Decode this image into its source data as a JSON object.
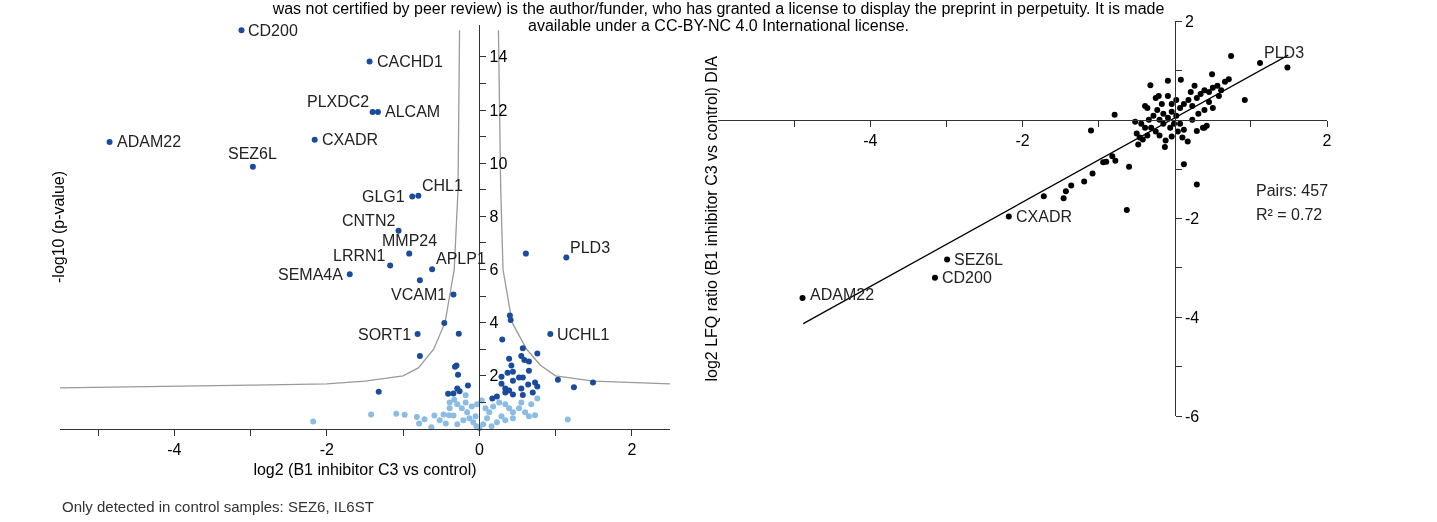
{
  "chart_data": [
    {
      "type": "scatter",
      "xlabel": "log2 (B1 inhibitor C3 vs control)",
      "ylabel": "-log10 (p-value)",
      "marker": "circle",
      "line_style": "solid",
      "grid": false,
      "xlim": [
        -5.5,
        2.5
      ],
      "xticks": [
        {
          "value": -5,
          "label": null
        },
        -4,
        {
          "value": -3,
          "label": null
        },
        -2,
        {
          "value": -1,
          "label": null
        },
        0,
        {
          "value": 1,
          "label": null
        },
        2
      ],
      "ylim": [
        0,
        15.2
      ],
      "yticks": [
        {
          "value": 1,
          "label": null
        },
        2,
        {
          "value": 3,
          "label": null
        },
        4,
        {
          "value": 5,
          "label": null
        },
        6,
        {
          "value": 7,
          "label": null
        },
        8,
        {
          "value": 9,
          "label": null
        },
        10,
        {
          "value": 11,
          "label": null
        },
        12,
        {
          "value": 13,
          "label": null
        },
        14
      ],
      "annotations": [
        "was not certified by peer review) is the author/funder, who has granted a license to display the preprint in perpetuity. It is made",
        "available under a CC-BY-NC 4.0 International license.",
        "Only detected in control samples: SEZ6, IL6ST",
        {
          "text": "CD200",
          "x": -3.12,
          "y": 15.0
        },
        {
          "text": "CACHD1",
          "x": -1.44,
          "y": 13.83
        },
        {
          "text": "PLXDC2",
          "x": -1.4,
          "y": 11.93
        },
        {
          "text": "ALCAM",
          "x": -1.33,
          "y": 11.93
        },
        {
          "text": "ADAM22",
          "x": -4.85,
          "y": 10.8
        },
        {
          "text": "CXADR",
          "x": -2.16,
          "y": 10.88
        },
        {
          "text": "SEZ6L",
          "x": -2.97,
          "y": 9.87
        },
        {
          "text": "GLG1",
          "x": -0.88,
          "y": 8.75
        },
        {
          "text": "CHL1",
          "x": -0.8,
          "y": 8.78
        },
        {
          "text": "CNTN2",
          "x": -1.06,
          "y": 7.46
        },
        {
          "text": "MMP24",
          "x": -0.92,
          "y": 6.6
        },
        {
          "text": "LRRN1",
          "x": -1.17,
          "y": 6.15
        },
        {
          "text": "SEMA4A",
          "x": -1.7,
          "y": 5.82
        },
        {
          "text": "APLP1",
          "x": -0.62,
          "y": 6.01
        },
        {
          "text": "VCAM1",
          "x": -0.34,
          "y": 5.06
        },
        {
          "text": "SORT1",
          "x": -0.81,
          "y": 3.57
        },
        {
          "text": "PLD3",
          "x": 1.14,
          "y": 6.45
        },
        {
          "text": "UCHL1",
          "x": 0.93,
          "y": 3.57
        }
      ],
      "series": [
        {
          "type": "line",
          "marker": "none",
          "color": "#9a9a9a",
          "x": [
            -5.5,
            -3,
            -2,
            -1.5,
            -1,
            -0.8,
            -0.6,
            -0.45,
            -0.33,
            -0.28,
            -0.26,
            0,
            0.25,
            0.28,
            0.31,
            0.43,
            0.62,
            0.8,
            1.0,
            1.5,
            2.5
          ],
          "values": [
            1.55,
            1.65,
            1.7,
            1.8,
            2.0,
            2.3,
            3.0,
            4.0,
            6.0,
            9.0,
            15.0,
            null,
            15.0,
            9.0,
            6.0,
            4.0,
            3.0,
            2.4,
            2.0,
            1.8,
            1.7
          ]
        },
        {
          "type": "scatter",
          "color": "#8cbbe3",
          "x": [
            -2.18,
            -1.42,
            -1.09,
            -0.98,
            -0.82,
            -0.79,
            -0.63,
            -0.72,
            -0.59,
            -0.47,
            -0.4,
            -0.34,
            -0.18,
            -0.33,
            -0.39,
            -0.29,
            -0.23,
            -0.16,
            -0.13,
            -0.08,
            -0.04,
            0,
            -0.21,
            -0.29,
            -0.44,
            -0.52,
            -0.39,
            -0.18,
            -0.1,
            -0.05,
            0.05,
            0.1,
            0.13,
            0.18,
            0.26,
            0.34,
            0.39,
            0.44,
            0.52,
            0.6,
            0.65,
            0.73,
            0.76,
            0.68,
            0.55,
            0.29,
            0.23,
            0.16,
            0.34,
            0.44,
            1.16,
            0.08,
            -0.03,
            0.03
          ],
          "values": [
            0.28,
            0.55,
            0.57,
            0.54,
            0.45,
            0.21,
            0.07,
            0.37,
            0.51,
            0.55,
            0.52,
            0.51,
            1.27,
            1.1,
            1.0,
            0.93,
            0.78,
            0.63,
            0.4,
            0.25,
            0.1,
            0.03,
            0.33,
            0.18,
            0.21,
            0.33,
            0.78,
            1.0,
            0.85,
            0.48,
            0.18,
            0.4,
            0.63,
            0.85,
            1.0,
            0.93,
            0.78,
            0.63,
            0.78,
            0.63,
            0.48,
            0.52,
            1.15,
            0.93,
            1.0,
            0.48,
            0.25,
            0.1,
            0.33,
            0.4,
            0.36,
            0.78,
            0.93,
            1.07
          ]
        },
        {
          "type": "scatter",
          "color": "#1b4b9b",
          "x": [
            -3.12,
            -1.44,
            -1.4,
            -1.33,
            -4.85,
            -2.16,
            -2.97,
            -0.88,
            -0.8,
            -1.06,
            -0.92,
            -1.17,
            -1.7,
            -0.62,
            -0.34,
            -0.81,
            1.14,
            0.93,
            -0.78,
            0.61,
            -0.46,
            -0.27,
            0.4,
            0.41,
            -0.78,
            0.3,
            0.57,
            0.76,
            0.55,
            0.65,
            0.59,
            0.39,
            0.42,
            0.37,
            0.44,
            0.52,
            0.65,
            0.57,
            0.44,
            0.29,
            0.29,
            0.34,
            0.34,
            0.39,
            0.44,
            0.55,
            0.57,
            0.7,
            0.73,
            0.76,
            0.64,
            1.03,
            1.24,
            1.49,
            0.23,
            0.17,
            -0.3,
            -0.32,
            -0.28,
            -0.15,
            -0.29,
            -0.26,
            -0.34,
            -0.41,
            -1.32
          ],
          "values": [
            15.0,
            13.83,
            11.93,
            11.93,
            10.8,
            10.88,
            9.87,
            8.75,
            8.78,
            7.46,
            6.6,
            6.15,
            5.82,
            6.01,
            5.06,
            3.57,
            6.45,
            3.57,
            5.6,
            6.6,
            3.99,
            3.58,
            4.27,
            4.1,
            2.75,
            3.37,
            3.04,
            2.84,
            2.75,
            2.54,
            2.6,
            2.64,
            2.39,
            2.12,
            2.15,
            1.94,
            2.19,
            1.94,
            1.82,
            1.97,
            1.7,
            1.52,
            1.37,
            1.45,
            1.3,
            1.52,
            1.28,
            1.37,
            1.75,
            1.6,
            1.67,
            1.85,
            1.57,
            1.75,
            1.22,
            1.15,
            2.39,
            2.34,
            2.04,
            1.64,
            1.52,
            1.42,
            1.34,
            1.33,
            1.4
          ]
        }
      ]
    },
    {
      "type": "scatter",
      "ylabel": "log2 LFQ ratio (B1 inhibitor C3 vs control) DIA",
      "marker": "circle",
      "line_style": "solid",
      "grid": false,
      "xlim": [
        -6,
        2
      ],
      "xticks": [
        {
          "value": -5,
          "label": null
        },
        -4,
        {
          "value": -3,
          "label": null
        },
        -2,
        {
          "value": -1,
          "label": null
        },
        {
          "value": 1,
          "label": null
        },
        2
      ],
      "ylim": [
        -6,
        2
      ],
      "yticks": [
        2,
        {
          "value": 1,
          "label": null
        },
        {
          "value": -1,
          "label": null
        },
        -2,
        {
          "value": -3,
          "label": null
        },
        -4,
        {
          "value": -5,
          "label": null
        },
        -6
      ],
      "annotations": [
        "Pairs: 457",
        "R² = 0.72",
        {
          "text": "PLD3",
          "x": 1.12,
          "y": 1.15
        },
        {
          "text": "CXADR",
          "x": -2.18,
          "y": -1.96
        },
        {
          "text": "SEZ6L",
          "x": -2.99,
          "y": -2.83
        },
        {
          "text": "CD200",
          "x": -3.15,
          "y": -3.2
        },
        {
          "text": "ADAM22",
          "x": -4.89,
          "y": -3.61
        }
      ],
      "series": [
        {
          "type": "line",
          "marker": "none",
          "color": "#000000",
          "x": [
            -4.88,
            1.49
          ],
          "values": [
            -4.13,
            1.31
          ]
        },
        {
          "type": "scatter",
          "color": "#000000",
          "x": [
            -4.89,
            -3.15,
            -2.99,
            -2.18,
            -1.72,
            -1.46,
            -1.43,
            -1.36,
            -1.19,
            -1.08,
            -0.94,
            -0.9,
            -0.82,
            -0.78,
            -0.6,
            -0.63,
            -1.1,
            -0.79,
            0.12,
            0.29,
            0.74,
            1.12,
            1.48,
            0.92,
            -0.32,
            -0.09,
            0.08,
            0.49,
            0.71,
            -0.5,
            -0.46,
            -0.48,
            -0.42,
            -0.36,
            -0.52,
            -0.44,
            -0.39,
            -0.34,
            -0.31,
            -0.25,
            -0.2,
            -0.13,
            -0.04,
            0.04,
            0.12,
            0.17,
            0.29,
            0.37,
            0.42,
            -0.28,
            -0.23,
            -0.17,
            -0.25,
            -0.21,
            -0.39,
            -0.36,
            -0.15,
            -0.09,
            -0.04,
            0.02,
            0.07,
            0.12,
            0.18,
            0.23,
            0.29,
            0.34,
            0.39,
            0.45,
            0.5,
            0.56,
            0.61,
            0.66,
            0.45,
            0.39,
            0.31,
            0.23,
            0.07,
            -0.01,
            -0.06,
            -0.15,
            0.02,
            -0.04,
            -0.09,
            0.21,
            0.26,
            0.58,
            0.5,
            0.39,
            -0.2,
            0.1,
            -0.12
          ],
          "values": [
            -3.61,
            -3.2,
            -2.83,
            -1.96,
            -1.55,
            -1.59,
            -1.45,
            -1.33,
            -1.25,
            -1.09,
            -0.86,
            -0.85,
            -0.74,
            -0.83,
            -0.95,
            -1.83,
            -0.22,
            0.1,
            -0.9,
            -1.31,
            1.29,
            1.15,
            1.06,
            0.4,
            0.7,
            0.79,
            0.81,
            0.92,
            0.82,
            -0.28,
            -0.36,
            -0.5,
            -0.4,
            -0.32,
            -0.04,
            -0.08,
            -0.16,
            0,
            -0.16,
            -0.24,
            -0.32,
            -0.55,
            -0.34,
            -0.24,
            -0.2,
            -0.44,
            -0.23,
            -0.16,
            -0.12,
            0.08,
            0.2,
            0.32,
            0.44,
            0.48,
            0.28,
            0.24,
            0.12,
            0.04,
            0.16,
            0.08,
            0.24,
            0.32,
            0.4,
            0.28,
            0.44,
            0.52,
            0.6,
            0.56,
            0.65,
            0.69,
            0.6,
            0.77,
            0.36,
            0.2,
            0.12,
            0,
            -0.08,
            -0.08,
            -0.16,
            -0.08,
            0.4,
            0.32,
            0.48,
            0.56,
            0.69,
            0.48,
            0.24,
            -0.16,
            0,
            -0.36,
            -0.42
          ]
        }
      ]
    }
  ]
}
